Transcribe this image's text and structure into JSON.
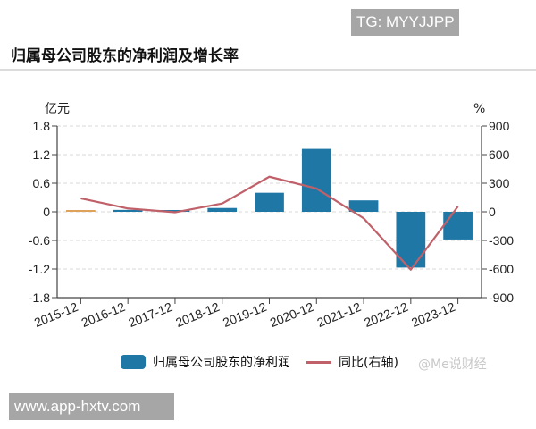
{
  "badges": {
    "top_right": "TG: MYYJJPP",
    "bottom_left": "www.app-hxtv.com"
  },
  "watermark": "@Me说财经",
  "colors": {
    "bar": "#1f77a6",
    "bar_first": "#e0a15a",
    "line": "#c0616a",
    "grid": "#d8d8d8",
    "axis": "#444444"
  },
  "chart_data": {
    "type": "bar",
    "title": "归属母公司股东的净利润及增长率",
    "xlabel": "",
    "ylabel": "亿元",
    "y2label": "%",
    "categories": [
      "2015-12",
      "2016-12",
      "2017-12",
      "2018-12",
      "2019-12",
      "2020-12",
      "2021-12",
      "2022-12",
      "2023-12"
    ],
    "series": [
      {
        "name": "归属母公司股东的净利润",
        "type": "bar",
        "axis": "left",
        "values": [
          0.01,
          0.04,
          0.03,
          0.08,
          0.4,
          1.32,
          0.24,
          -1.17,
          -0.58
        ]
      },
      {
        "name": "同比(右轴)",
        "type": "line",
        "axis": "right",
        "values": [
          141,
          35,
          -5,
          87,
          368,
          244,
          -68,
          -607,
          56
        ]
      }
    ],
    "ylim": [
      -1.8,
      1.8
    ],
    "yticks": [
      "1.8",
      "1.2",
      "0.6",
      "0",
      "-0.6",
      "-1.2",
      "-1.8"
    ],
    "y2lim": [
      -900,
      900
    ],
    "y2ticks": [
      "900",
      "600",
      "300",
      "0",
      "-300",
      "-600",
      "-900"
    ],
    "grid": true,
    "legend_position": "bottom"
  }
}
